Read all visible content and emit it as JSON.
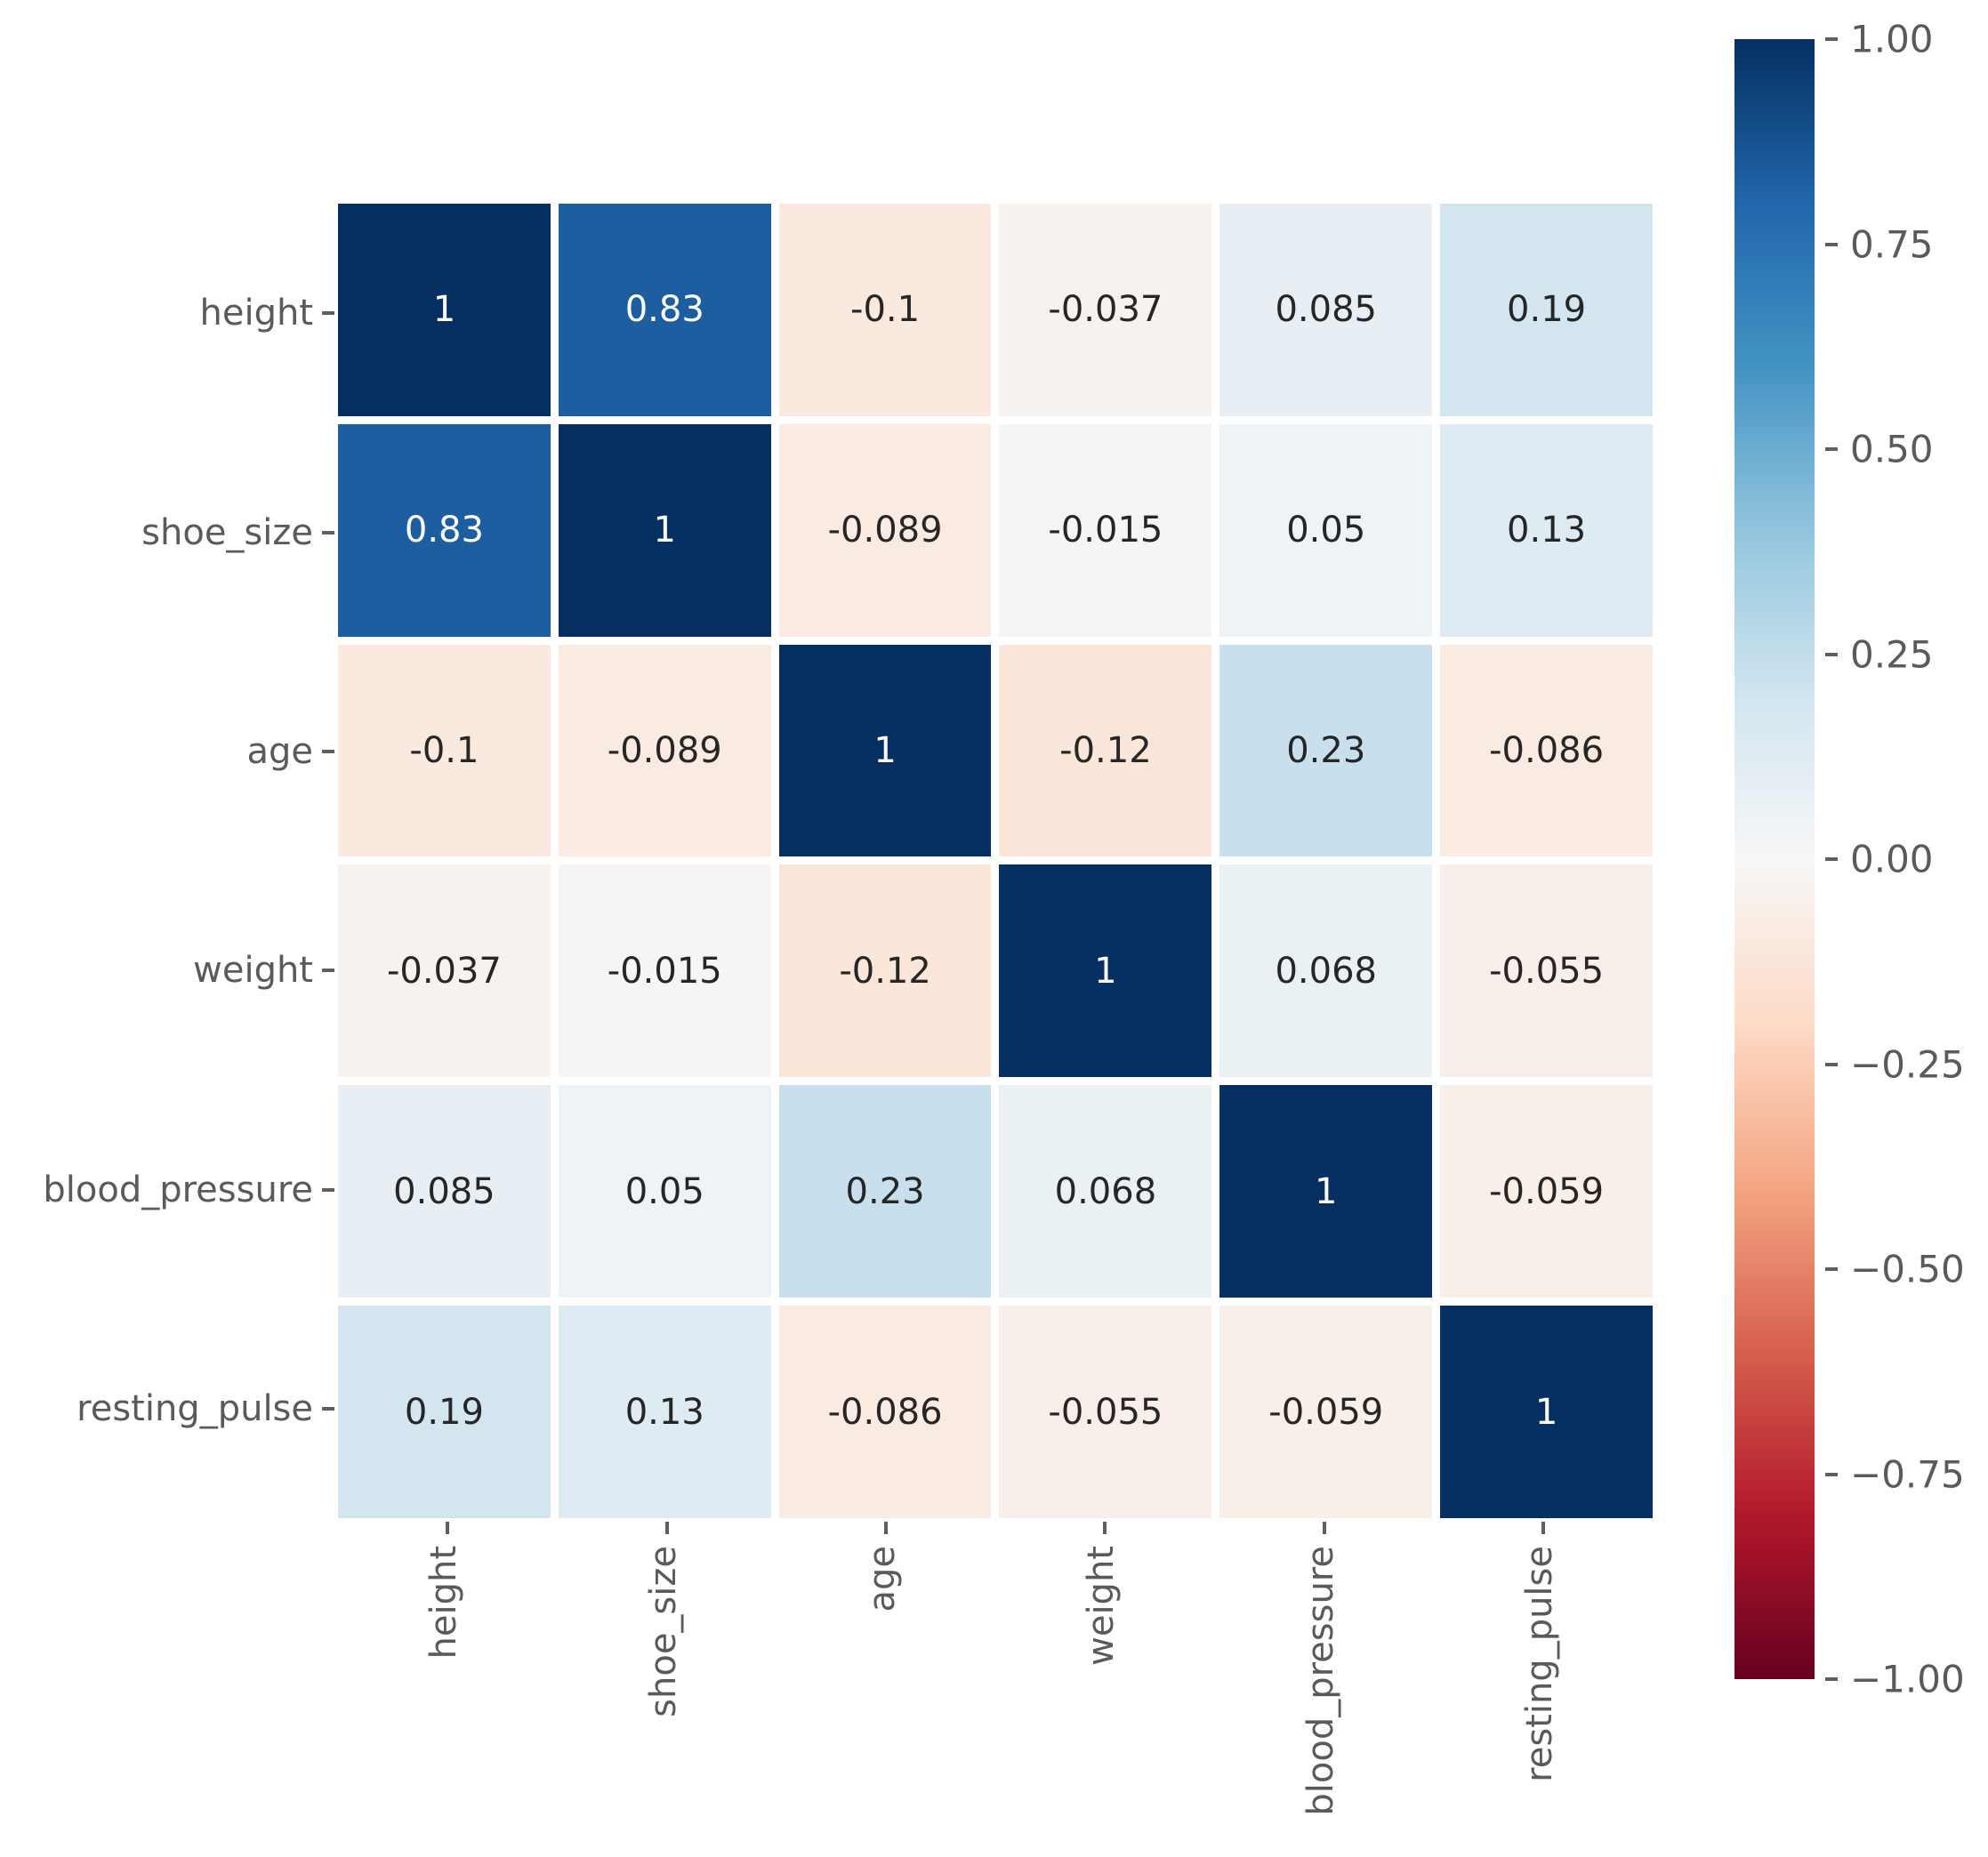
{
  "chart_data": {
    "type": "heatmap",
    "title": "",
    "xlabel": "",
    "ylabel": "",
    "categories": [
      "height",
      "shoe_size",
      "age",
      "weight",
      "blood_pressure",
      "resting_pulse"
    ],
    "matrix": [
      [
        1,
        0.83,
        -0.1,
        -0.037,
        0.085,
        0.19
      ],
      [
        0.83,
        1,
        -0.089,
        -0.015,
        0.05,
        0.13
      ],
      [
        -0.1,
        -0.089,
        1,
        -0.12,
        0.23,
        -0.086
      ],
      [
        -0.037,
        -0.015,
        -0.12,
        1,
        0.068,
        -0.055
      ],
      [
        0.085,
        0.05,
        0.23,
        0.068,
        1,
        -0.059
      ],
      [
        0.19,
        0.13,
        -0.086,
        -0.055,
        -0.059,
        1
      ]
    ],
    "cell_labels": [
      [
        "1",
        "0.83",
        "-0.1",
        "-0.037",
        "0.085",
        "0.19"
      ],
      [
        "0.83",
        "1",
        "-0.089",
        "-0.015",
        "0.05",
        "0.13"
      ],
      [
        "-0.1",
        "-0.089",
        "1",
        "-0.12",
        "0.23",
        "-0.086"
      ],
      [
        "-0.037",
        "-0.015",
        "-0.12",
        "1",
        "0.068",
        "-0.055"
      ],
      [
        "0.085",
        "0.05",
        "0.23",
        "0.068",
        "1",
        "-0.059"
      ],
      [
        "0.19",
        "0.13",
        "-0.086",
        "-0.055",
        "-0.059",
        "1"
      ]
    ],
    "vmin": -1,
    "vmax": 1,
    "colormap_name": "RdBu",
    "colormap_stops": [
      "#67001f",
      "#b2182b",
      "#d6604d",
      "#f4a582",
      "#fddbc7",
      "#f7f7f7",
      "#d1e5f0",
      "#92c5de",
      "#4393c3",
      "#2166ac",
      "#053061"
    ],
    "grid": false,
    "legend_position": "right-colorbar",
    "colorbar": {
      "tick_labels": [
        "1.00",
        "0.75",
        "0.50",
        "0.25",
        "0.00",
        "−0.25",
        "−0.50",
        "−0.75",
        "−1.00"
      ],
      "tick_values": [
        1.0,
        0.75,
        0.5,
        0.25,
        0.0,
        -0.25,
        -0.5,
        -0.75,
        -1.0
      ]
    }
  },
  "colors": {
    "background": "#ffffff",
    "tick_label": "#5a5a5a",
    "tick_mark": "#5f5f5f",
    "annotation_dark": "#262626",
    "annotation_light": "#ffffff"
  }
}
